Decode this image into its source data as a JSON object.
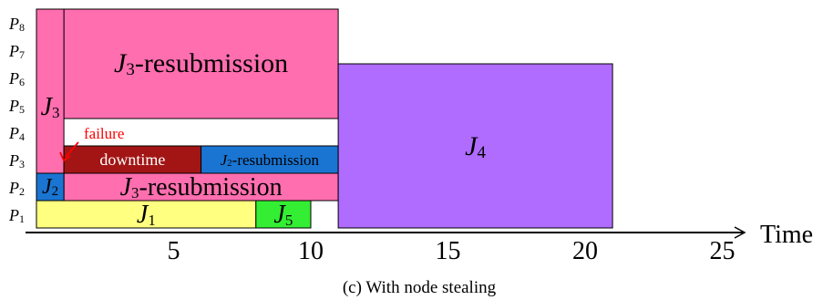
{
  "diagram": {
    "caption": "(c) With node stealing",
    "axis": {
      "label": "Time",
      "ticks": [
        5,
        10,
        15,
        20,
        25
      ],
      "x_min": 0,
      "x_max": 25
    },
    "processors": [
      "P1",
      "P2",
      "P3",
      "P4",
      "P5",
      "P6",
      "P7",
      "P8"
    ],
    "blocks": [
      {
        "id": "j3-main",
        "label_base": "J",
        "label_sub": "3",
        "label_suffix": "-resubmission",
        "start": 1,
        "end": 11,
        "p_from": 5,
        "p_to": 8,
        "color": "#ff6eaf"
      },
      {
        "id": "j3-left",
        "label_base": "J",
        "label_sub": "3",
        "label_suffix": "",
        "start": 0,
        "end": 1,
        "p_from": 2,
        "p_to": 8,
        "color": "#ff6eaf"
      },
      {
        "id": "j3-lower",
        "label_base": "J",
        "label_sub": "3",
        "label_suffix": "-resubmission",
        "start": 1,
        "end": 11,
        "p_from": 2,
        "p_to": 2,
        "color": "#ff6eaf"
      },
      {
        "id": "j2",
        "label_base": "J",
        "label_sub": "2",
        "label_suffix": "",
        "start": 0,
        "end": 1,
        "p_from": 2,
        "p_to": 2,
        "color": "#1a75d2"
      },
      {
        "id": "downtime",
        "label_base": "downtime",
        "label_sub": "",
        "label_suffix": "",
        "start": 1,
        "end": 6,
        "p_from": 3,
        "p_to": 3,
        "color": "#a31515"
      },
      {
        "id": "j2-resub",
        "label_base": "J",
        "label_sub": "2",
        "label_suffix": "-resubmission",
        "start": 6,
        "end": 11,
        "p_from": 3,
        "p_to": 3,
        "color": "#1a75d2"
      },
      {
        "id": "j1",
        "label_base": "J",
        "label_sub": "1",
        "label_suffix": "",
        "start": 0,
        "end": 8,
        "p_from": 1,
        "p_to": 1,
        "color": "#ffff80"
      },
      {
        "id": "j5",
        "label_base": "J",
        "label_sub": "5",
        "label_suffix": "",
        "start": 8,
        "end": 10,
        "p_from": 1,
        "p_to": 1,
        "color": "#33ee33"
      },
      {
        "id": "j4",
        "label_base": "J",
        "label_sub": "4",
        "label_suffix": "",
        "start": 11,
        "end": 21,
        "p_from": 1,
        "p_to": 6,
        "color": "#b06cff"
      }
    ],
    "annotation": {
      "label": "failure",
      "color": "#ff0000",
      "time": 1,
      "processor": 3
    }
  }
}
